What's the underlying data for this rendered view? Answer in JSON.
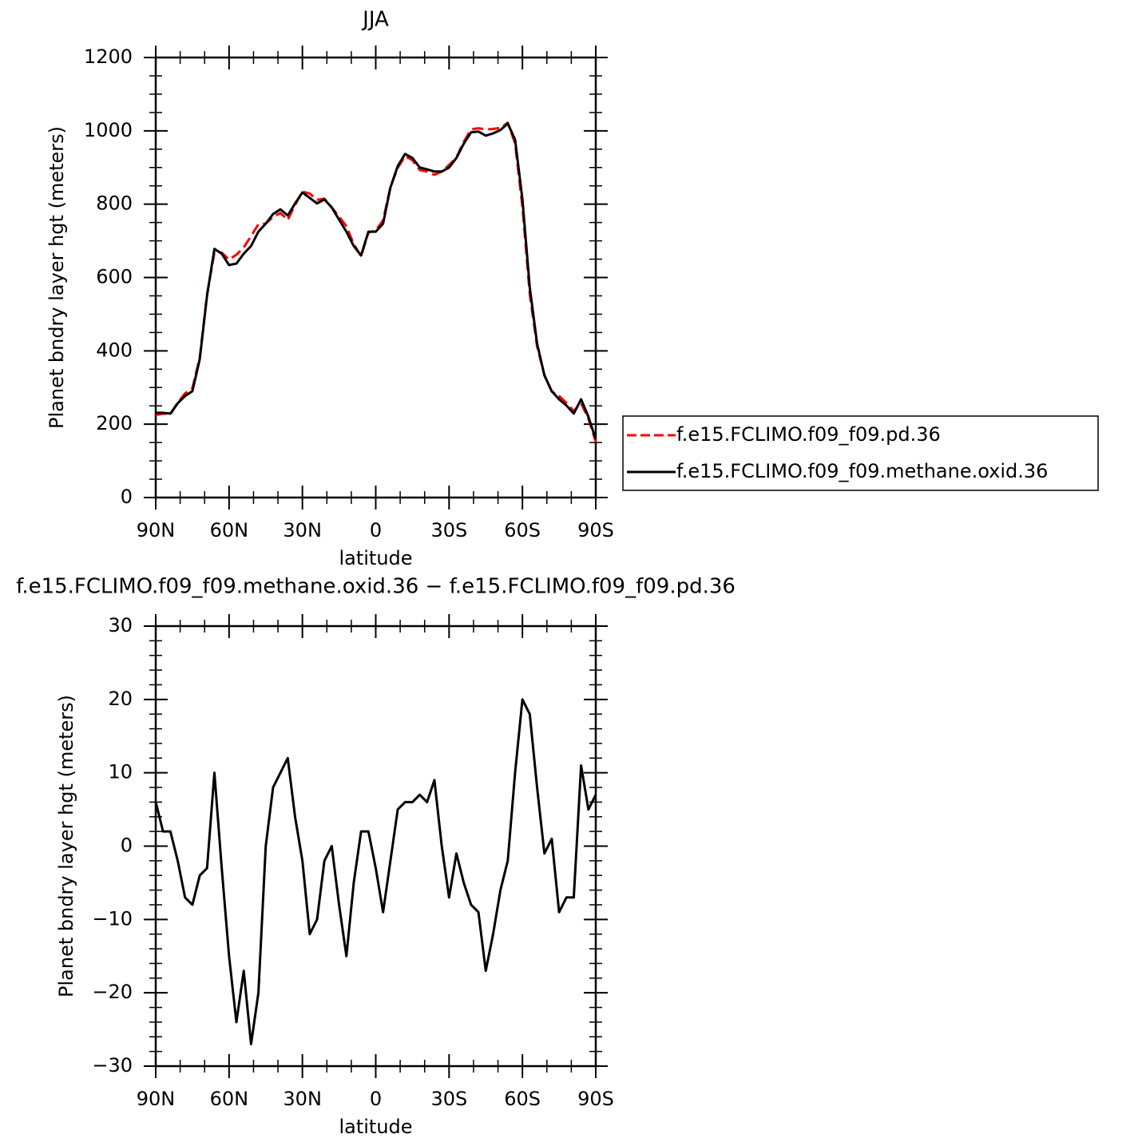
{
  "chart_data": [
    {
      "type": "line",
      "title": "JJA",
      "xlabel": "latitude",
      "ylabel": "Planet bndry layer hgt (meters)",
      "x": [
        90,
        87,
        84,
        81,
        78,
        75,
        72,
        69,
        66,
        63,
        60,
        57,
        54,
        51,
        48,
        45,
        42,
        39,
        36,
        33,
        30,
        27,
        24,
        21,
        18,
        15,
        12,
        9,
        6,
        3,
        0,
        -3,
        -6,
        -9,
        -12,
        -15,
        -18,
        -21,
        -24,
        -27,
        -30,
        -33,
        -36,
        -39,
        -42,
        -45,
        -48,
        -51,
        -54,
        -57,
        -60,
        -63,
        -66,
        -69,
        -72,
        -75,
        -78,
        -81,
        -84,
        -87,
        -90
      ],
      "series": [
        {
          "name": "f.e15.FCLIMO.f09_f09.pd.36",
          "color": "#ff0000",
          "dashed": true,
          "values": [
            225,
            229,
            227,
            259,
            284,
            298,
            381,
            554,
            668,
            668,
            649,
            662,
            682,
            713,
            745,
            747,
            765,
            776,
            757,
            798,
            834,
            829,
            812,
            815,
            791,
            766,
            740,
            691,
            658,
            723,
            728,
            756,
            847,
            899,
            931,
            920,
            893,
            889,
            880,
            889,
            907,
            927,
            970,
            1004,
            1007,
            1004,
            1005,
            1008,
            1022,
            966,
            793,
            555,
            412,
            334,
            289,
            277,
            258,
            236,
            257,
            215,
            152
          ]
        },
        {
          "name": "f.e15.FCLIMO.f09_f09.methane.oxid.36",
          "color": "#000000",
          "dashed": false,
          "values": [
            231,
            231,
            229,
            257,
            277,
            290,
            377,
            551,
            678,
            665,
            634,
            638,
            665,
            686,
            725,
            747,
            773,
            786,
            769,
            802,
            832,
            817,
            802,
            813,
            791,
            758,
            725,
            686,
            660,
            725,
            725,
            747,
            845,
            904,
            937,
            926,
            900,
            895,
            889,
            889,
            900,
            926,
            965,
            996,
            998,
            987,
            993,
            1002,
            1020,
            976,
            813,
            573,
            420,
            333,
            290,
            268,
            251,
            229,
            268,
            220,
            159
          ]
        }
      ],
      "xlim": [
        90,
        -90
      ],
      "xticks": [
        {
          "value": 90,
          "label": "90N"
        },
        {
          "value": 60,
          "label": "60N"
        },
        {
          "value": 30,
          "label": "30N"
        },
        0,
        {
          "value": -30,
          "label": "30S"
        },
        {
          "value": -60,
          "label": "60S"
        },
        {
          "value": -90,
          "label": "90S"
        }
      ],
      "ylim": [
        0,
        1200
      ],
      "yticks": [
        0,
        200,
        400,
        600,
        800,
        1000,
        1200
      ],
      "legend": "right"
    },
    {
      "type": "line",
      "title": "f.e15.FCLIMO.f09_f09.methane.oxid.36 − f.e15.FCLIMO.f09_f09.pd.36",
      "xlabel": "latitude",
      "ylabel": "Planet bndry layer hgt (meters)",
      "x": [
        90,
        87,
        84,
        81,
        78,
        75,
        72,
        69,
        66,
        63,
        60,
        57,
        54,
        51,
        48,
        45,
        42,
        39,
        36,
        33,
        30,
        27,
        24,
        21,
        18,
        15,
        12,
        9,
        6,
        3,
        0,
        -3,
        -6,
        -9,
        -12,
        -15,
        -18,
        -21,
        -24,
        -27,
        -30,
        -33,
        -36,
        -39,
        -42,
        -45,
        -48,
        -51,
        -54,
        -57,
        -60,
        -63,
        -66,
        -69,
        -72,
        -75,
        -78,
        -81,
        -84,
        -87,
        -90
      ],
      "color": "#000000",
      "values": [
        6,
        2,
        2,
        -2,
        -7,
        -8,
        -4,
        -3,
        10,
        -3,
        -15,
        -24,
        -17,
        -27,
        -20,
        0,
        8,
        10,
        12,
        4,
        -2,
        -12,
        -10,
        -2,
        0,
        -8,
        -15,
        -5,
        2,
        2,
        -3,
        -9,
        -2,
        5,
        6,
        6,
        7,
        6,
        9,
        0,
        -7,
        -1,
        -5,
        -8,
        -9,
        -17,
        -12,
        -6,
        -2,
        10,
        20,
        18,
        8,
        -1,
        1,
        -9,
        -7,
        -7,
        11,
        5,
        7
      ],
      "xlim": [
        90,
        -90
      ],
      "xticks": [
        {
          "value": 90,
          "label": "90N"
        },
        {
          "value": 60,
          "label": "60N"
        },
        {
          "value": 30,
          "label": "30N"
        },
        0,
        {
          "value": -30,
          "label": "30S"
        },
        {
          "value": -60,
          "label": "60S"
        },
        {
          "value": -90,
          "label": "90S"
        }
      ],
      "ylim": [
        -30,
        30
      ],
      "yticks": [
        {
          "value": -30,
          "label": "−30"
        },
        {
          "value": -20,
          "label": "−20"
        },
        {
          "value": -10,
          "label": "−10"
        },
        0,
        10,
        20,
        30
      ]
    }
  ]
}
